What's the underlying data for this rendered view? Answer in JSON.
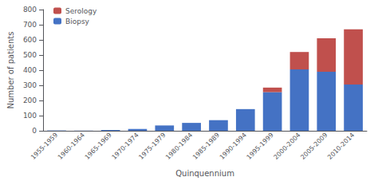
{
  "chart_data": {
    "type": "bar",
    "categories": [
      "1955-1959",
      "1960-1964",
      "1965-1969",
      "1970-1974",
      "1975-1979",
      "1980-1984",
      "1985-1989",
      "1990-1994",
      "1995-1999",
      "2000-2004",
      "2005-2009",
      "2010-2014"
    ],
    "series": [
      {
        "name": "Biopsy",
        "color": "#4472C4",
        "values": [
          2,
          1,
          5,
          12,
          35,
          52,
          70,
          143,
          255,
          405,
          390,
          305
        ]
      },
      {
        "name": "Serology",
        "color": "#C0504D",
        "values": [
          0,
          0,
          0,
          0,
          0,
          0,
          0,
          0,
          30,
          115,
          220,
          365
        ]
      }
    ],
    "stacked": true,
    "xlabel": "Quinquennium",
    "ylabel": "Number of patients",
    "ylim": [
      0,
      800
    ],
    "yticks": [
      0,
      100,
      200,
      300,
      400,
      500,
      600,
      700,
      800
    ],
    "grid": false,
    "legend": "upper left"
  }
}
